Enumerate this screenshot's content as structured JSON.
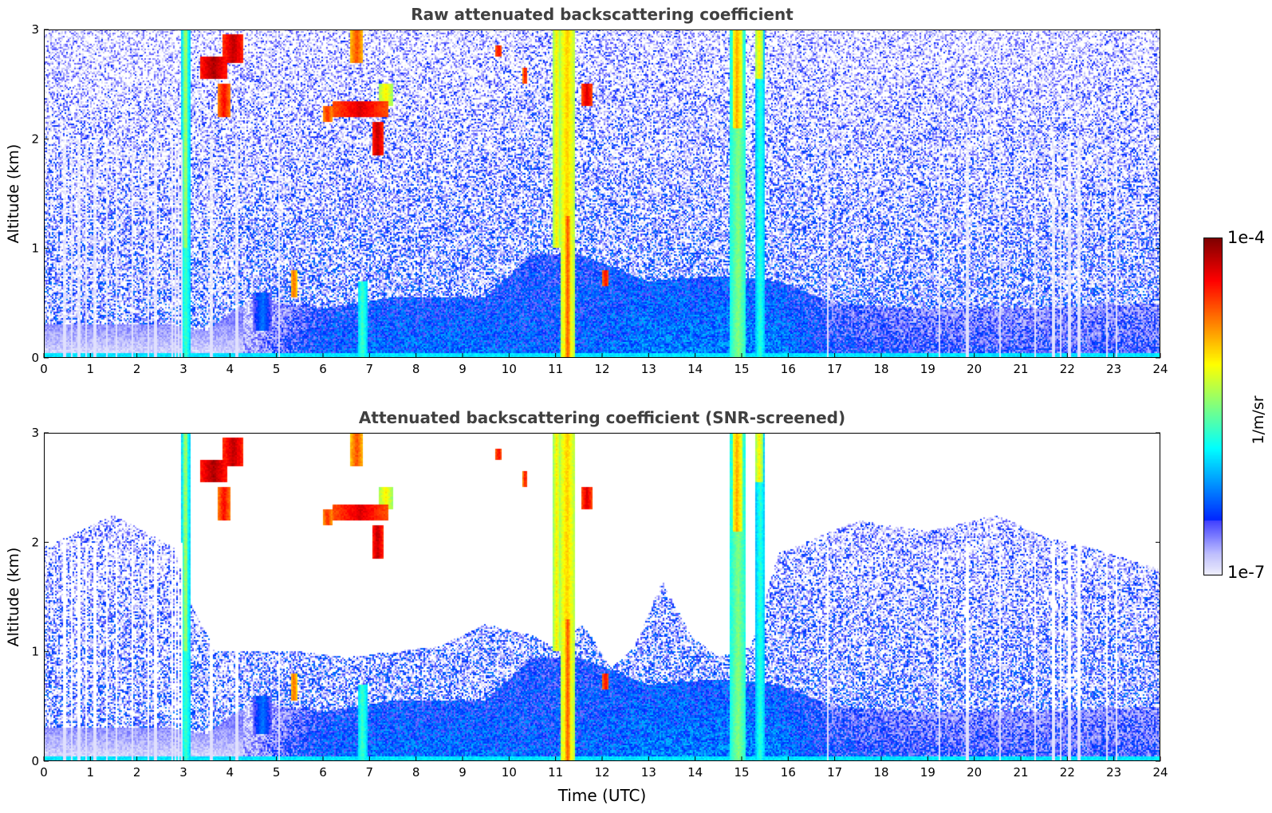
{
  "chart_data": [
    {
      "type": "heatmap",
      "title": "Raw attenuated backscattering coefficient",
      "xlabel": "",
      "ylabel": "Altitude (km)",
      "xlim": [
        0,
        24
      ],
      "ylim": [
        0,
        3
      ],
      "xticks": [
        "0",
        "1",
        "2",
        "3",
        "4",
        "5",
        "6",
        "7",
        "8",
        "9",
        "10",
        "11",
        "12",
        "13",
        "14",
        "15",
        "16",
        "17",
        "18",
        "19",
        "20",
        "21",
        "22",
        "23",
        "24"
      ],
      "yticks": [
        "0",
        "1",
        "2",
        "3"
      ],
      "screened": false,
      "ground_layer_km": [
        0.0,
        0.05
      ],
      "dropout_times_h": [
        0.45,
        0.6,
        0.75,
        0.9,
        1.1,
        1.35,
        1.55,
        1.9,
        2.25,
        2.4,
        2.75,
        2.82,
        2.9,
        2.97,
        3.6,
        4.15,
        5.05,
        16.85,
        19.25,
        19.85,
        20.55,
        21.3,
        21.7,
        21.85,
        22.05,
        22.25,
        22.85,
        23.05
      ]
    },
    {
      "type": "heatmap",
      "title": "Attenuated backscattering coefficient (SNR-screened)",
      "xlabel": "Time (UTC)",
      "ylabel": "Altitude (km)",
      "xlim": [
        0,
        24
      ],
      "ylim": [
        0,
        3
      ],
      "xticks": [
        "0",
        "1",
        "2",
        "3",
        "4",
        "5",
        "6",
        "7",
        "8",
        "9",
        "10",
        "11",
        "12",
        "13",
        "14",
        "15",
        "16",
        "17",
        "18",
        "19",
        "20",
        "21",
        "22",
        "23",
        "24"
      ],
      "yticks": [
        "0",
        "1",
        "2",
        "3"
      ],
      "screened": true,
      "ground_layer_km": [
        0.0,
        0.05
      ],
      "dropout_times_h": [
        0.45,
        0.6,
        0.75,
        0.9,
        1.1,
        1.35,
        1.55,
        1.9,
        2.25,
        2.4,
        2.75,
        2.82,
        2.9,
        2.97,
        3.6,
        4.15,
        5.05,
        16.85,
        19.25,
        19.85,
        20.55,
        21.3,
        21.7,
        21.85,
        22.05,
        22.25,
        22.85,
        23.05
      ],
      "signal_top_km": [
        [
          0,
          1.95
        ],
        [
          1.5,
          2.25
        ],
        [
          2.8,
          1.95
        ],
        [
          3.2,
          1.4
        ],
        [
          3.7,
          1.0
        ],
        [
          4.5,
          1.0
        ],
        [
          5.5,
          1.0
        ],
        [
          6.5,
          0.95
        ],
        [
          7.5,
          1.0
        ],
        [
          8.5,
          1.05
        ],
        [
          9.5,
          1.25
        ],
        [
          10.5,
          1.15
        ],
        [
          10.9,
          1.05
        ],
        [
          11.6,
          1.25
        ],
        [
          12.2,
          0.85
        ],
        [
          12.7,
          1.05
        ],
        [
          13.3,
          1.65
        ],
        [
          13.9,
          1.15
        ],
        [
          14.5,
          0.95
        ],
        [
          15.2,
          1.05
        ],
        [
          15.8,
          1.9
        ],
        [
          17.5,
          2.2
        ],
        [
          19,
          2.1
        ],
        [
          20.5,
          2.25
        ],
        [
          21.5,
          2.05
        ],
        [
          22.5,
          1.95
        ],
        [
          24,
          1.75
        ]
      ],
      "noise_fringe_km": 0.5
    }
  ],
  "colorbar": {
    "max_label": "1e-4",
    "min_label": "1e-7",
    "unit": "1/m/sr",
    "log10_range": [
      -7,
      -4
    ],
    "colormap": "jet"
  },
  "boundary_layer_log10": [
    [
      0.0,
      0.3,
      -6.85
    ],
    [
      2.8,
      0.3,
      -6.85
    ],
    [
      3.5,
      0.25,
      -6.5
    ],
    [
      4.5,
      0.55,
      -6.5
    ],
    [
      6.0,
      0.45,
      -6.1
    ],
    [
      7.5,
      0.55,
      -6.05
    ],
    [
      9.5,
      0.55,
      -6.05
    ],
    [
      10.5,
      0.95,
      -6.1
    ],
    [
      11.5,
      0.95,
      -6.1
    ],
    [
      13.0,
      0.7,
      -6.0
    ],
    [
      14.5,
      0.75,
      -6.0
    ],
    [
      15.8,
      0.7,
      -6.0
    ],
    [
      17.0,
      0.5,
      -6.2
    ],
    [
      19.0,
      0.45,
      -6.3
    ],
    [
      21.0,
      0.45,
      -6.3
    ],
    [
      24.0,
      0.5,
      -6.3
    ]
  ],
  "features": [
    {
      "t0": 2.95,
      "t1": 3.15,
      "z0": 0.0,
      "z1": 3.0,
      "v": -5.6
    },
    {
      "t0": 3.0,
      "t1": 3.1,
      "z0": 1.0,
      "z1": 3.0,
      "v": -5.25
    },
    {
      "t0": 3.35,
      "t1": 3.95,
      "z0": 2.55,
      "z1": 2.75,
      "v": -4.05
    },
    {
      "t0": 3.85,
      "t1": 4.3,
      "z0": 2.7,
      "z1": 2.95,
      "v": -4.1
    },
    {
      "t0": 3.75,
      "t1": 4.0,
      "z0": 2.2,
      "z1": 2.5,
      "v": -4.3
    },
    {
      "t0": 4.5,
      "t1": 4.9,
      "z0": 0.25,
      "z1": 0.6,
      "v": -6.2
    },
    {
      "t0": 5.3,
      "t1": 5.45,
      "z0": 0.55,
      "z1": 0.8,
      "v": -4.6
    },
    {
      "t0": 6.0,
      "t1": 6.2,
      "z0": 2.15,
      "z1": 2.3,
      "v": -4.4
    },
    {
      "t0": 6.2,
      "t1": 7.4,
      "z0": 2.2,
      "z1": 2.35,
      "v": -4.2
    },
    {
      "t0": 6.6,
      "t1": 6.85,
      "z0": 2.7,
      "z1": 3.0,
      "v": -4.5
    },
    {
      "t0": 6.75,
      "t1": 6.95,
      "z0": 0.0,
      "z1": 0.7,
      "v": -5.6
    },
    {
      "t0": 7.05,
      "t1": 7.3,
      "z0": 1.85,
      "z1": 2.15,
      "v": -4.1
    },
    {
      "t0": 7.2,
      "t1": 7.5,
      "z0": 2.3,
      "z1": 2.5,
      "v": -5.0
    },
    {
      "t0": 9.7,
      "t1": 9.85,
      "z0": 2.75,
      "z1": 2.85,
      "v": -4.3
    },
    {
      "t0": 10.3,
      "t1": 10.4,
      "z0": 2.5,
      "z1": 2.65,
      "v": -4.3
    },
    {
      "t0": 10.95,
      "t1": 11.1,
      "z0": 1.0,
      "z1": 3.0,
      "v": -5.0
    },
    {
      "t0": 11.1,
      "t1": 11.4,
      "z0": 0.0,
      "z1": 3.0,
      "v": -4.9
    },
    {
      "t0": 11.2,
      "t1": 11.32,
      "z0": 0.0,
      "z1": 1.3,
      "v": -4.55
    },
    {
      "t0": 11.55,
      "t1": 11.8,
      "z0": 2.3,
      "z1": 2.5,
      "v": -4.2
    },
    {
      "t0": 12.0,
      "t1": 12.15,
      "z0": 0.65,
      "z1": 0.8,
      "v": -4.3
    },
    {
      "t0": 14.75,
      "t1": 15.1,
      "z0": 0.0,
      "z1": 3.0,
      "v": -5.4
    },
    {
      "t0": 14.8,
      "t1": 15.0,
      "z0": 2.1,
      "z1": 3.0,
      "v": -4.8
    },
    {
      "t0": 15.3,
      "t1": 15.5,
      "z0": 0.0,
      "z1": 3.0,
      "v": -5.65
    },
    {
      "t0": 15.3,
      "t1": 15.45,
      "z0": 2.55,
      "z1": 3.0,
      "v": -5.0
    }
  ]
}
